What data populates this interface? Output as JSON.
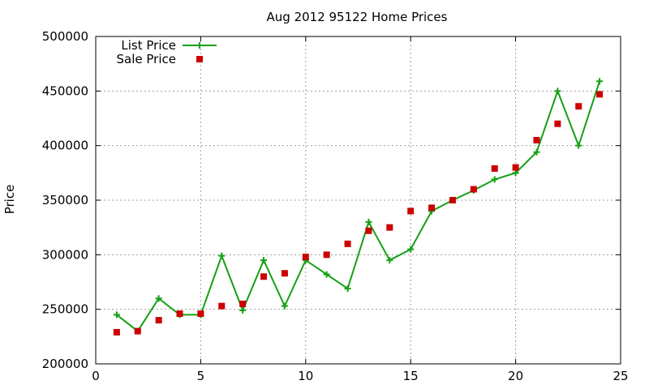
{
  "chart_data": {
    "type": "line",
    "title": "Aug 2012 95122 Home Prices",
    "xlabel": "",
    "ylabel": "Price",
    "xlim": [
      0,
      25
    ],
    "ylim": [
      200000,
      500000
    ],
    "xticks": [
      0,
      5,
      10,
      15,
      20,
      25
    ],
    "yticks": [
      200000,
      250000,
      300000,
      350000,
      400000,
      450000,
      500000
    ],
    "grid": true,
    "legend_position": "top-left",
    "series": [
      {
        "name": "List Price",
        "style": "line+plus",
        "color": "#14a014",
        "x": [
          1,
          2,
          3,
          4,
          5,
          6,
          7,
          8,
          9,
          10,
          11,
          12,
          13,
          14,
          15,
          16,
          17,
          18,
          19,
          20,
          21,
          22,
          23,
          24
        ],
        "values": [
          245000,
          230000,
          260000,
          245000,
          245000,
          299000,
          249000,
          295000,
          253000,
          295000,
          282000,
          269000,
          330000,
          295000,
          305000,
          340000,
          350000,
          359000,
          369000,
          375000,
          394000,
          450000,
          400000,
          459000
        ]
      },
      {
        "name": "Sale Price",
        "style": "square-points",
        "color": "#cc0000",
        "x": [
          1,
          2,
          3,
          4,
          5,
          6,
          7,
          8,
          9,
          10,
          11,
          12,
          13,
          14,
          15,
          16,
          17,
          18,
          19,
          20,
          21,
          22,
          23,
          24
        ],
        "values": [
          229000,
          230000,
          240000,
          246000,
          246000,
          253000,
          255000,
          280000,
          283000,
          298000,
          300000,
          310000,
          322000,
          325000,
          340000,
          343000,
          350000,
          360000,
          379000,
          380000,
          405000,
          420000,
          436000,
          447000
        ]
      }
    ]
  }
}
